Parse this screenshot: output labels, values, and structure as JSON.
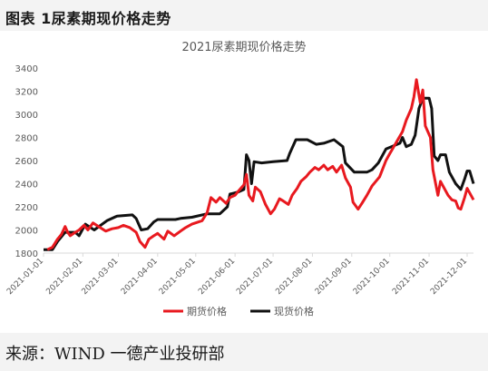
{
  "figure": {
    "title": "图表 1尿素期现价格走势",
    "source": "来源：WIND 一德产业投研部"
  },
  "colors": {
    "futures": "#e8191f",
    "spot": "#111111",
    "axis": "#d9d9d9",
    "tick_text": "#595959"
  },
  "chart_data": {
    "type": "line",
    "title": "2021尿素期现价格走势",
    "xlabel": "",
    "ylabel": "",
    "xlim": [
      "2021-01-01",
      "2021-12-06"
    ],
    "ylim": [
      1800,
      3400
    ],
    "yticks": [
      1800,
      2000,
      2200,
      2400,
      2600,
      2800,
      3000,
      3200,
      3400
    ],
    "xticks": [
      "2021-01-01",
      "2021-02-01",
      "2021-03-01",
      "2021-04-01",
      "2021-05-01",
      "2021-06-01",
      "2021-07-01",
      "2021-08-01",
      "2021-09-01",
      "2021-10-01",
      "2021-11-01",
      "2021-12-01"
    ],
    "legend_position": "bottom",
    "grid": false,
    "series": [
      {
        "name": "期货价格",
        "color": "#e8191f",
        "points": [
          [
            "2021-01-04",
            1830
          ],
          [
            "2021-01-08",
            1850
          ],
          [
            "2021-01-12",
            1920
          ],
          [
            "2021-01-15",
            1960
          ],
          [
            "2021-01-18",
            2030
          ],
          [
            "2021-01-20",
            1980
          ],
          [
            "2021-01-22",
            1950
          ],
          [
            "2021-01-26",
            1980
          ],
          [
            "2021-01-29",
            2000
          ],
          [
            "2021-02-02",
            2040
          ],
          [
            "2021-02-05",
            2000
          ],
          [
            "2021-02-09",
            2060
          ],
          [
            "2021-02-19",
            1990
          ],
          [
            "2021-02-24",
            2010
          ],
          [
            "2021-03-01",
            2020
          ],
          [
            "2021-03-05",
            2040
          ],
          [
            "2021-03-10",
            2020
          ],
          [
            "2021-03-15",
            1980
          ],
          [
            "2021-03-18",
            1900
          ],
          [
            "2021-03-22",
            1850
          ],
          [
            "2021-03-25",
            1920
          ],
          [
            "2021-03-29",
            1950
          ],
          [
            "2021-04-01",
            1970
          ],
          [
            "2021-04-06",
            1920
          ],
          [
            "2021-04-09",
            1990
          ],
          [
            "2021-04-14",
            1950
          ],
          [
            "2021-04-19",
            1990
          ],
          [
            "2021-04-23",
            2020
          ],
          [
            "2021-04-28",
            2050
          ],
          [
            "2021-05-06",
            2080
          ],
          [
            "2021-05-10",
            2150
          ],
          [
            "2021-05-13",
            2280
          ],
          [
            "2021-05-17",
            2240
          ],
          [
            "2021-05-20",
            2280
          ],
          [
            "2021-05-25",
            2230
          ],
          [
            "2021-05-28",
            2280
          ],
          [
            "2021-06-01",
            2300
          ],
          [
            "2021-06-04",
            2340
          ],
          [
            "2021-06-08",
            2390
          ],
          [
            "2021-06-10",
            2480
          ],
          [
            "2021-06-12",
            2300
          ],
          [
            "2021-06-15",
            2250
          ],
          [
            "2021-06-17",
            2370
          ],
          [
            "2021-06-21",
            2330
          ],
          [
            "2021-06-25",
            2220
          ],
          [
            "2021-06-29",
            2140
          ],
          [
            "2021-07-02",
            2180
          ],
          [
            "2021-07-06",
            2270
          ],
          [
            "2021-07-09",
            2250
          ],
          [
            "2021-07-13",
            2220
          ],
          [
            "2021-07-16",
            2300
          ],
          [
            "2021-07-20",
            2360
          ],
          [
            "2021-07-23",
            2420
          ],
          [
            "2021-07-27",
            2460
          ],
          [
            "2021-07-30",
            2500
          ],
          [
            "2021-08-03",
            2540
          ],
          [
            "2021-08-06",
            2520
          ],
          [
            "2021-08-10",
            2560
          ],
          [
            "2021-08-13",
            2520
          ],
          [
            "2021-08-17",
            2550
          ],
          [
            "2021-08-20",
            2500
          ],
          [
            "2021-08-24",
            2560
          ],
          [
            "2021-08-27",
            2450
          ],
          [
            "2021-08-31",
            2370
          ],
          [
            "2021-09-02",
            2240
          ],
          [
            "2021-09-06",
            2180
          ],
          [
            "2021-09-09",
            2230
          ],
          [
            "2021-09-13",
            2300
          ],
          [
            "2021-09-17",
            2380
          ],
          [
            "2021-09-23",
            2460
          ],
          [
            "2021-09-28",
            2600
          ],
          [
            "2021-09-30",
            2640
          ],
          [
            "2021-10-11",
            2850
          ],
          [
            "2021-10-14",
            2950
          ],
          [
            "2021-10-18",
            3050
          ],
          [
            "2021-10-20",
            3150
          ],
          [
            "2021-10-22",
            3300
          ],
          [
            "2021-10-25",
            3100
          ],
          [
            "2021-10-27",
            3210
          ],
          [
            "2021-10-29",
            2900
          ],
          [
            "2021-11-02",
            2800
          ],
          [
            "2021-11-04",
            2520
          ],
          [
            "2021-11-08",
            2300
          ],
          [
            "2021-11-10",
            2420
          ],
          [
            "2021-11-12",
            2380
          ],
          [
            "2021-11-16",
            2300
          ],
          [
            "2021-11-19",
            2260
          ],
          [
            "2021-11-22",
            2250
          ],
          [
            "2021-11-24",
            2190
          ],
          [
            "2021-11-26",
            2180
          ],
          [
            "2021-11-29",
            2280
          ],
          [
            "2021-12-01",
            2360
          ],
          [
            "2021-12-03",
            2320
          ],
          [
            "2021-12-06",
            2260
          ]
        ]
      },
      {
        "name": "现货价格",
        "color": "#111111",
        "points": [
          [
            "2021-01-01",
            1830
          ],
          [
            "2021-01-08",
            1830
          ],
          [
            "2021-01-12",
            1900
          ],
          [
            "2021-01-18",
            1980
          ],
          [
            "2021-01-26",
            1980
          ],
          [
            "2021-01-29",
            1950
          ],
          [
            "2021-02-03",
            2050
          ],
          [
            "2021-02-10",
            2000
          ],
          [
            "2021-02-20",
            2080
          ],
          [
            "2021-02-28",
            2120
          ],
          [
            "2021-03-12",
            2130
          ],
          [
            "2021-03-15",
            2100
          ],
          [
            "2021-03-19",
            2000
          ],
          [
            "2021-03-24",
            2010
          ],
          [
            "2021-03-29",
            2070
          ],
          [
            "2021-04-01",
            2090
          ],
          [
            "2021-04-15",
            2090
          ],
          [
            "2021-04-19",
            2100
          ],
          [
            "2021-04-28",
            2110
          ],
          [
            "2021-05-10",
            2140
          ],
          [
            "2021-05-20",
            2140
          ],
          [
            "2021-05-26",
            2200
          ],
          [
            "2021-05-28",
            2310
          ],
          [
            "2021-06-04",
            2330
          ],
          [
            "2021-06-08",
            2350
          ],
          [
            "2021-06-10",
            2650
          ],
          [
            "2021-06-12",
            2600
          ],
          [
            "2021-06-14",
            2400
          ],
          [
            "2021-06-16",
            2590
          ],
          [
            "2021-06-22",
            2580
          ],
          [
            "2021-07-01",
            2590
          ],
          [
            "2021-07-12",
            2600
          ],
          [
            "2021-07-14",
            2660
          ],
          [
            "2021-07-19",
            2780
          ],
          [
            "2021-07-28",
            2780
          ],
          [
            "2021-08-04",
            2740
          ],
          [
            "2021-08-10",
            2750
          ],
          [
            "2021-08-18",
            2780
          ],
          [
            "2021-08-25",
            2720
          ],
          [
            "2021-08-27",
            2580
          ],
          [
            "2021-09-03",
            2500
          ],
          [
            "2021-09-13",
            2500
          ],
          [
            "2021-09-17",
            2520
          ],
          [
            "2021-09-22",
            2580
          ],
          [
            "2021-09-28",
            2700
          ],
          [
            "2021-10-09",
            2750
          ],
          [
            "2021-10-11",
            2800
          ],
          [
            "2021-10-14",
            2720
          ],
          [
            "2021-10-18",
            2740
          ],
          [
            "2021-10-21",
            2820
          ],
          [
            "2021-10-24",
            3050
          ],
          [
            "2021-10-27",
            3140
          ],
          [
            "2021-11-01",
            3140
          ],
          [
            "2021-11-03",
            3050
          ],
          [
            "2021-11-05",
            2640
          ],
          [
            "2021-11-08",
            2600
          ],
          [
            "2021-11-10",
            2650
          ],
          [
            "2021-11-14",
            2650
          ],
          [
            "2021-11-17",
            2500
          ],
          [
            "2021-11-22",
            2400
          ],
          [
            "2021-11-26",
            2350
          ],
          [
            "2021-11-29",
            2440
          ],
          [
            "2021-12-01",
            2510
          ],
          [
            "2021-12-03",
            2510
          ],
          [
            "2021-12-06",
            2400
          ]
        ]
      }
    ]
  }
}
